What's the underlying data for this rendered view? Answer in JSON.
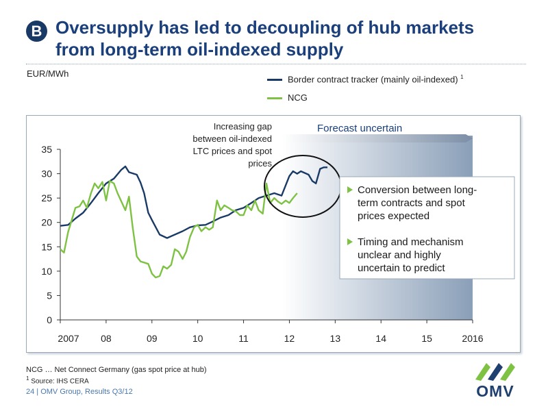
{
  "slide": {
    "badge": "B",
    "title_line1": "Oversupply has led to decoupling of hub markets",
    "title_line2": "from long-term oil-indexed supply",
    "unit_label": "EUR/MWh",
    "footnote1": "NCG … Net Connect Germany (gas spot price at hub)",
    "footnote2_mark": "1",
    "footnote2": " Source: IHS CERA",
    "page_footer": "24 | OMV Group, Results Q3/12",
    "logo_text": "OMV"
  },
  "legend": {
    "border_label": "Border contract tracker (mainly oil-indexed)",
    "border_mark": "1",
    "ncg_label": "NCG"
  },
  "annotations": {
    "gap_lines": [
      "Increasing gap",
      "between oil-indexed",
      "LTC prices and spot",
      "prices"
    ],
    "forecast_label": "Forecast uncertain",
    "bullets": [
      [
        "Conversion between long-",
        "term contracts and spot",
        "prices expected"
      ],
      [
        "Timing and mechanism",
        "unclear and highly",
        "uncertain to predict"
      ]
    ]
  },
  "colors": {
    "border_series": "#1a3a66",
    "ncg_series": "#7dc242",
    "forecast_fill": "#8a9fb8",
    "title": "#1a3f7a",
    "bullet_marker": "#7dc242"
  },
  "chart_data": {
    "type": "line",
    "title": "",
    "xlabel": "",
    "ylabel": "EUR/MWh",
    "ylim": [
      0,
      35
    ],
    "yticks": [
      0,
      5,
      10,
      15,
      20,
      25,
      30,
      35
    ],
    "xlim": [
      2007,
      2016
    ],
    "xticks": [
      {
        "x": 2007,
        "label": "2007"
      },
      {
        "x": 2008,
        "label": "08"
      },
      {
        "x": 2009,
        "label": "09"
      },
      {
        "x": 2010,
        "label": "10"
      },
      {
        "x": 2011,
        "label": "11"
      },
      {
        "x": 2012,
        "label": "12"
      },
      {
        "x": 2013,
        "label": "13"
      },
      {
        "x": 2014,
        "label": "14"
      },
      {
        "x": 2015,
        "label": "15"
      },
      {
        "x": 2016,
        "label": "2016"
      }
    ],
    "forecast_start": 2012.0,
    "grid": false,
    "legend_position": "top-right",
    "series": [
      {
        "name": "Border contract tracker (mainly oil-indexed)",
        "points": [
          [
            2007.0,
            19.3
          ],
          [
            2007.17,
            19.5
          ],
          [
            2007.33,
            20.8
          ],
          [
            2007.5,
            22.0
          ],
          [
            2007.67,
            24.0
          ],
          [
            2007.83,
            26.0
          ],
          [
            2008.0,
            28.0
          ],
          [
            2008.17,
            29.0
          ],
          [
            2008.33,
            30.8
          ],
          [
            2008.42,
            31.5
          ],
          [
            2008.5,
            30.3
          ],
          [
            2008.67,
            29.8
          ],
          [
            2008.75,
            28.2
          ],
          [
            2008.83,
            26.0
          ],
          [
            2008.92,
            22.0
          ],
          [
            2009.0,
            20.5
          ],
          [
            2009.17,
            17.5
          ],
          [
            2009.33,
            16.8
          ],
          [
            2009.5,
            17.5
          ],
          [
            2009.67,
            18.2
          ],
          [
            2009.83,
            19.0
          ],
          [
            2010.0,
            19.4
          ],
          [
            2010.17,
            19.5
          ],
          [
            2010.33,
            20.2
          ],
          [
            2010.5,
            21.0
          ],
          [
            2010.67,
            21.5
          ],
          [
            2010.83,
            22.5
          ],
          [
            2011.0,
            23.0
          ],
          [
            2011.17,
            24.0
          ],
          [
            2011.33,
            25.0
          ],
          [
            2011.5,
            25.5
          ],
          [
            2011.67,
            26.0
          ],
          [
            2011.83,
            25.5
          ],
          [
            2012.0,
            29.5
          ],
          [
            2012.08,
            30.5
          ],
          [
            2012.17,
            30.0
          ],
          [
            2012.25,
            30.5
          ],
          [
            2012.42,
            29.8
          ],
          [
            2012.5,
            28.5
          ],
          [
            2012.58,
            28.0
          ],
          [
            2012.67,
            31.0
          ],
          [
            2012.75,
            31.3
          ],
          [
            2012.83,
            31.3
          ]
        ]
      },
      {
        "name": "NCG",
        "points": [
          [
            2007.0,
            14.5
          ],
          [
            2007.08,
            13.8
          ],
          [
            2007.17,
            18.0
          ],
          [
            2007.33,
            23.0
          ],
          [
            2007.42,
            23.3
          ],
          [
            2007.5,
            24.5
          ],
          [
            2007.58,
            23.0
          ],
          [
            2007.67,
            26.0
          ],
          [
            2007.75,
            28.0
          ],
          [
            2007.83,
            27.0
          ],
          [
            2007.92,
            28.3
          ],
          [
            2008.0,
            24.5
          ],
          [
            2008.08,
            28.5
          ],
          [
            2008.17,
            28.0
          ],
          [
            2008.25,
            26.0
          ],
          [
            2008.42,
            22.5
          ],
          [
            2008.5,
            25.3
          ],
          [
            2008.58,
            19.0
          ],
          [
            2008.67,
            13.0
          ],
          [
            2008.75,
            12.0
          ],
          [
            2008.92,
            11.5
          ],
          [
            2009.0,
            9.5
          ],
          [
            2009.08,
            8.7
          ],
          [
            2009.17,
            9.0
          ],
          [
            2009.25,
            11.0
          ],
          [
            2009.33,
            10.5
          ],
          [
            2009.42,
            11.3
          ],
          [
            2009.5,
            14.5
          ],
          [
            2009.58,
            14.0
          ],
          [
            2009.67,
            12.5
          ],
          [
            2009.75,
            14.0
          ],
          [
            2009.83,
            17.0
          ],
          [
            2009.92,
            19.0
          ],
          [
            2010.0,
            19.5
          ],
          [
            2010.08,
            18.2
          ],
          [
            2010.17,
            19.0
          ],
          [
            2010.25,
            18.5
          ],
          [
            2010.33,
            19.0
          ],
          [
            2010.42,
            24.5
          ],
          [
            2010.5,
            22.5
          ],
          [
            2010.58,
            23.5
          ],
          [
            2010.67,
            23.0
          ],
          [
            2010.75,
            22.5
          ],
          [
            2010.83,
            22.3
          ],
          [
            2010.92,
            21.5
          ],
          [
            2011.0,
            21.5
          ],
          [
            2011.08,
            23.5
          ],
          [
            2011.17,
            22.5
          ],
          [
            2011.25,
            24.5
          ],
          [
            2011.33,
            22.5
          ],
          [
            2011.42,
            21.8
          ],
          [
            2011.5,
            28.0
          ],
          [
            2011.58,
            24.0
          ],
          [
            2011.67,
            25.0
          ],
          [
            2011.75,
            24.3
          ],
          [
            2011.83,
            23.8
          ],
          [
            2011.92,
            24.5
          ],
          [
            2012.0,
            24.0
          ],
          [
            2012.08,
            25.0
          ],
          [
            2012.17,
            26.0
          ]
        ]
      }
    ]
  }
}
